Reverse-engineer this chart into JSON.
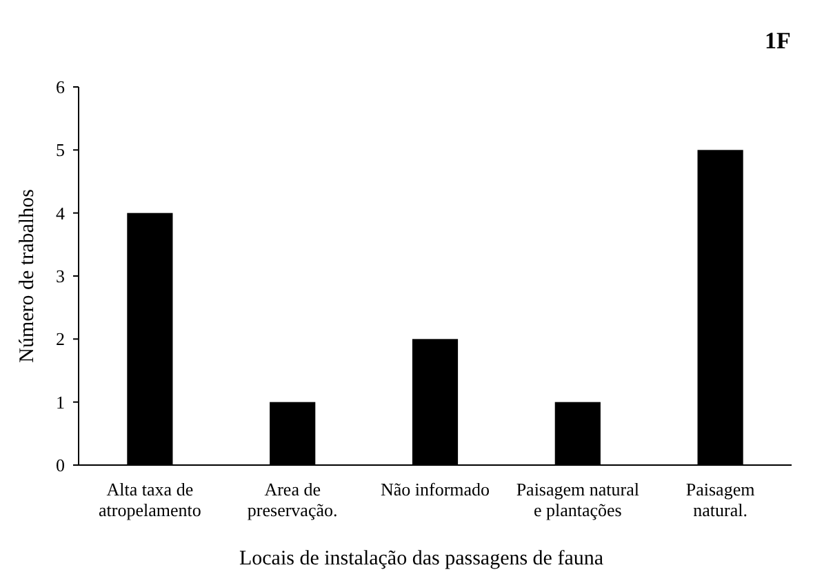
{
  "chart_data": {
    "type": "bar",
    "title": "1F",
    "xlabel": "Locais de instalação das passagens de fauna",
    "ylabel": "Número de trabalhos",
    "categories": [
      "Alta taxa de atropelamento",
      "Area de preservação.",
      "Não informado",
      "Paisagem natural e plantações",
      "Paisagem natural."
    ],
    "values": [
      4,
      1,
      2,
      1,
      5
    ],
    "color": "#000000",
    "ylim": [
      0,
      6
    ],
    "yticks": [
      0,
      1,
      2,
      3,
      4,
      5,
      6
    ],
    "grid": false
  }
}
